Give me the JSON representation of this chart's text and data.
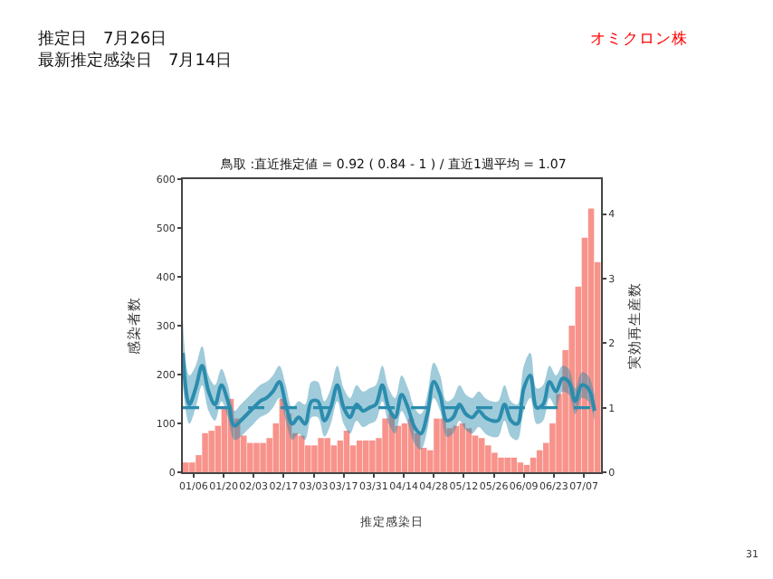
{
  "chart_data": {
    "type": "bar",
    "title": "推定日　7月26日",
    "subtitle": "最新推定感染日　7月14日",
    "annotations": [
      "鳥取 :直近推定値 = 0.92 ( 0.84 - 1 ) / 直近1週平均 = 1.07",
      "オミクロン株",
      "31"
    ],
    "xlabel": "推定感染日",
    "ylabel": "感染者数",
    "y2label": "実効再生産数",
    "x": [
      "--01-01",
      "--01-04",
      "--01-07",
      "--01-10",
      "--01-13",
      "--01-16",
      "--01-19",
      "--01-22",
      "--01-25",
      "--01-28",
      "--01-31",
      "--02-03",
      "--02-06",
      "--02-09",
      "--02-12",
      "--02-15",
      "--02-18",
      "--02-21",
      "--02-24",
      "--02-27",
      "--03-02",
      "--03-05",
      "--03-08",
      "--03-11",
      "--03-14",
      "--03-17",
      "--03-20",
      "--03-23",
      "--03-26",
      "--03-29",
      "--04-01",
      "--04-04",
      "--04-07",
      "--04-10",
      "--04-13",
      "--04-16",
      "--04-19",
      "--04-22",
      "--04-25",
      "--04-28",
      "--05-01",
      "--05-04",
      "--05-07",
      "--05-10",
      "--05-13",
      "--05-16",
      "--05-19",
      "--05-22",
      "--05-25",
      "--05-28",
      "--05-31",
      "--06-03",
      "--06-06",
      "--06-09",
      "--06-12",
      "--06-15",
      "--06-18",
      "--06-21",
      "--06-24",
      "--06-27",
      "--06-30",
      "--07-03",
      "--07-06",
      "--07-09",
      "--07-12"
    ],
    "series": [
      {
        "color": "#f7938b",
        "values": [
          20,
          20,
          35,
          80,
          85,
          95,
          130,
          150,
          110,
          75,
          60,
          60,
          60,
          70,
          100,
          150,
          120,
          80,
          75,
          55,
          55,
          70,
          70,
          55,
          65,
          85,
          55,
          65,
          65,
          65,
          70,
          110,
          120,
          95,
          100,
          110,
          80,
          50,
          45,
          110,
          110,
          90,
          95,
          100,
          90,
          75,
          70,
          55,
          40,
          30,
          30,
          30,
          20,
          15,
          30,
          45,
          60,
          100,
          160,
          250,
          300,
          380,
          480,
          540,
          430
        ]
      },
      {
        "type": "line",
        "axis": "y2",
        "color": "#2b8cae",
        "values": [
          1.85,
          1.05,
          1.3,
          1.65,
          1.25,
          1.05,
          1.35,
          1.1,
          0.72,
          0.8,
          0.9,
          1.0,
          1.1,
          1.15,
          1.25,
          1.4,
          1.05,
          0.75,
          0.85,
          0.75,
          1.1,
          1.1,
          0.8,
          1.0,
          1.35,
          1.0,
          0.85,
          1.05,
          0.95,
          1.0,
          1.05,
          1.35,
          1.0,
          0.85,
          1.2,
          1.0,
          0.7,
          0.6,
          0.9,
          1.4,
          1.2,
          0.8,
          0.85,
          1.05,
          0.9,
          0.85,
          0.95,
          0.85,
          0.8,
          0.8,
          1.05,
          0.8,
          0.75,
          1.3,
          1.5,
          1.0,
          1.05,
          1.4,
          1.25,
          1.45,
          1.4,
          1.1,
          1.35,
          1.3,
          0.95
        ],
        "upper": [
          2.4,
          1.5,
          1.65,
          1.95,
          1.5,
          1.35,
          1.6,
          1.35,
          0.95,
          1.05,
          1.15,
          1.25,
          1.35,
          1.4,
          1.5,
          1.65,
          1.35,
          1.0,
          1.1,
          1.05,
          1.4,
          1.4,
          1.1,
          1.3,
          1.65,
          1.3,
          1.15,
          1.35,
          1.25,
          1.3,
          1.35,
          1.65,
          1.3,
          1.15,
          1.5,
          1.3,
          1.0,
          0.9,
          1.2,
          1.7,
          1.5,
          1.1,
          1.15,
          1.35,
          1.2,
          1.15,
          1.25,
          1.15,
          1.1,
          1.1,
          1.35,
          1.1,
          1.05,
          1.65,
          1.85,
          1.3,
          1.35,
          1.65,
          1.5,
          1.65,
          1.6,
          1.3,
          1.55,
          1.5,
          1.2
        ],
        "lower": [
          1.35,
          0.75,
          1.0,
          1.35,
          0.95,
          0.8,
          1.1,
          0.85,
          0.5,
          0.55,
          0.65,
          0.75,
          0.85,
          0.9,
          1.0,
          1.15,
          0.8,
          0.5,
          0.6,
          0.5,
          0.85,
          0.85,
          0.55,
          0.75,
          1.1,
          0.75,
          0.6,
          0.8,
          0.7,
          0.75,
          0.8,
          1.1,
          0.75,
          0.6,
          0.95,
          0.75,
          0.45,
          0.35,
          0.65,
          1.15,
          0.95,
          0.55,
          0.6,
          0.8,
          0.65,
          0.6,
          0.7,
          0.6,
          0.55,
          0.55,
          0.8,
          0.55,
          0.5,
          0.95,
          1.15,
          0.75,
          0.8,
          1.15,
          1.0,
          1.25,
          1.2,
          0.9,
          1.15,
          1.1,
          0.8
        ]
      }
    ],
    "ref_lines": [
      {
        "axis": "y2",
        "value": 1,
        "color": "#2b8cae",
        "line_style": "dashed"
      }
    ],
    "xlim": [
      "--01-01",
      "--07-15"
    ],
    "xticks": [
      {
        "value": "--01-06",
        "label": "01/06"
      },
      {
        "value": "--01-20",
        "label": "01/20"
      },
      {
        "value": "--02-03",
        "label": "02/03"
      },
      {
        "value": "--02-17",
        "label": "02/17"
      },
      {
        "value": "--03-03",
        "label": "03/03"
      },
      {
        "value": "--03-17",
        "label": "03/17"
      },
      {
        "value": "--03-31",
        "label": "03/31"
      },
      {
        "value": "--04-14",
        "label": "04/14"
      },
      {
        "value": "--04-28",
        "label": "04/28"
      },
      {
        "value": "--05-12",
        "label": "05/12"
      },
      {
        "value": "--05-26",
        "label": "05/26"
      },
      {
        "value": "--06-09",
        "label": "06/09"
      },
      {
        "value": "--06-23",
        "label": "06/23"
      },
      {
        "value": "--07-07",
        "label": "07/07"
      }
    ],
    "ylim": [
      0,
      600
    ],
    "yticks": [
      0,
      100,
      200,
      300,
      400,
      500,
      600
    ],
    "y2lim": [
      0,
      4.54
    ],
    "y2ticks": [
      0,
      1,
      2,
      3,
      4
    ]
  }
}
